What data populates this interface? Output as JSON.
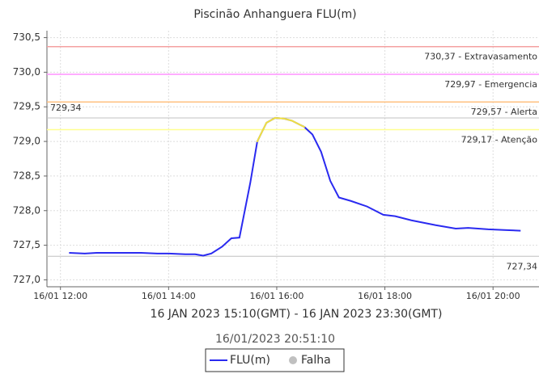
{
  "chart_data": {
    "type": "line",
    "title": "Piscinão Anhanguera FLU(m)",
    "subtitle": "16 JAN 2023 15:10(GMT) - 16 JAN 2023 23:30(GMT)",
    "timestamp": "16/01/2023 20:51:10",
    "x": [
      12.16,
      12.45,
      12.67,
      13.12,
      13.49,
      13.79,
      14.01,
      14.31,
      14.49,
      14.64,
      14.79,
      14.99,
      15.16,
      15.31,
      15.51,
      15.64,
      15.81,
      15.97,
      16.13,
      16.28,
      16.43,
      16.51,
      16.66,
      16.82,
      16.99,
      17.15,
      17.37,
      17.67,
      17.97,
      18.19,
      18.49,
      18.94,
      19.31,
      19.54,
      19.91,
      20.21,
      20.51
    ],
    "series": [
      {
        "name": "FLU(m)",
        "color": "#2a2af0",
        "highlight_color": "#f0e040",
        "values": [
          727.39,
          727.38,
          727.39,
          727.39,
          727.39,
          727.38,
          727.38,
          727.37,
          727.37,
          727.35,
          727.38,
          727.48,
          727.6,
          727.61,
          728.4,
          729.0,
          729.27,
          729.34,
          729.33,
          729.3,
          729.24,
          729.21,
          729.1,
          728.85,
          728.43,
          728.19,
          728.14,
          728.06,
          727.94,
          727.92,
          727.86,
          727.79,
          727.74,
          727.75,
          727.73,
          727.72,
          727.71
        ]
      }
    ],
    "failure_legend": {
      "name": "Falha",
      "color": "#c0c0c0"
    },
    "thresholds": [
      {
        "value": 730.37,
        "label": "730,37 - Extravasamento",
        "color": "#f4a0a0"
      },
      {
        "value": 729.97,
        "label": "729,97 - Emergencia",
        "color": "#ff90ff"
      },
      {
        "value": 729.57,
        "label": "729,57 - Alerta",
        "color": "#ffc080"
      },
      {
        "value": 729.17,
        "label": "729,17 - Atenção",
        "color": "#ffff90"
      }
    ],
    "reference_lines": [
      {
        "value": 729.34,
        "label": "729,34",
        "position": "left",
        "color": "#c0c0c0"
      },
      {
        "value": 727.34,
        "label": "727,34",
        "position": "right",
        "color": "#c0c0c0"
      }
    ],
    "xlim": [
      11.75,
      20.85
    ],
    "xticks": [
      {
        "value": 12,
        "label": "16/01 12:00"
      },
      {
        "value": 14,
        "label": "16/01 14:00"
      },
      {
        "value": 16,
        "label": "16/01 16:00"
      },
      {
        "value": 18,
        "label": "16/01 18:00"
      },
      {
        "value": 20,
        "label": "16/01 20:00"
      }
    ],
    "ylim": [
      726.9,
      730.6
    ],
    "yticks": [
      {
        "value": 727.0,
        "label": "727,0"
      },
      {
        "value": 727.5,
        "label": "727,5"
      },
      {
        "value": 728.0,
        "label": "728,0"
      },
      {
        "value": 728.5,
        "label": "728,5"
      },
      {
        "value": 729.0,
        "label": "729,0"
      },
      {
        "value": 729.5,
        "label": "729,5"
      },
      {
        "value": 730.0,
        "label": "730,0"
      },
      {
        "value": 730.5,
        "label": "730,5"
      }
    ],
    "grid": true
  }
}
